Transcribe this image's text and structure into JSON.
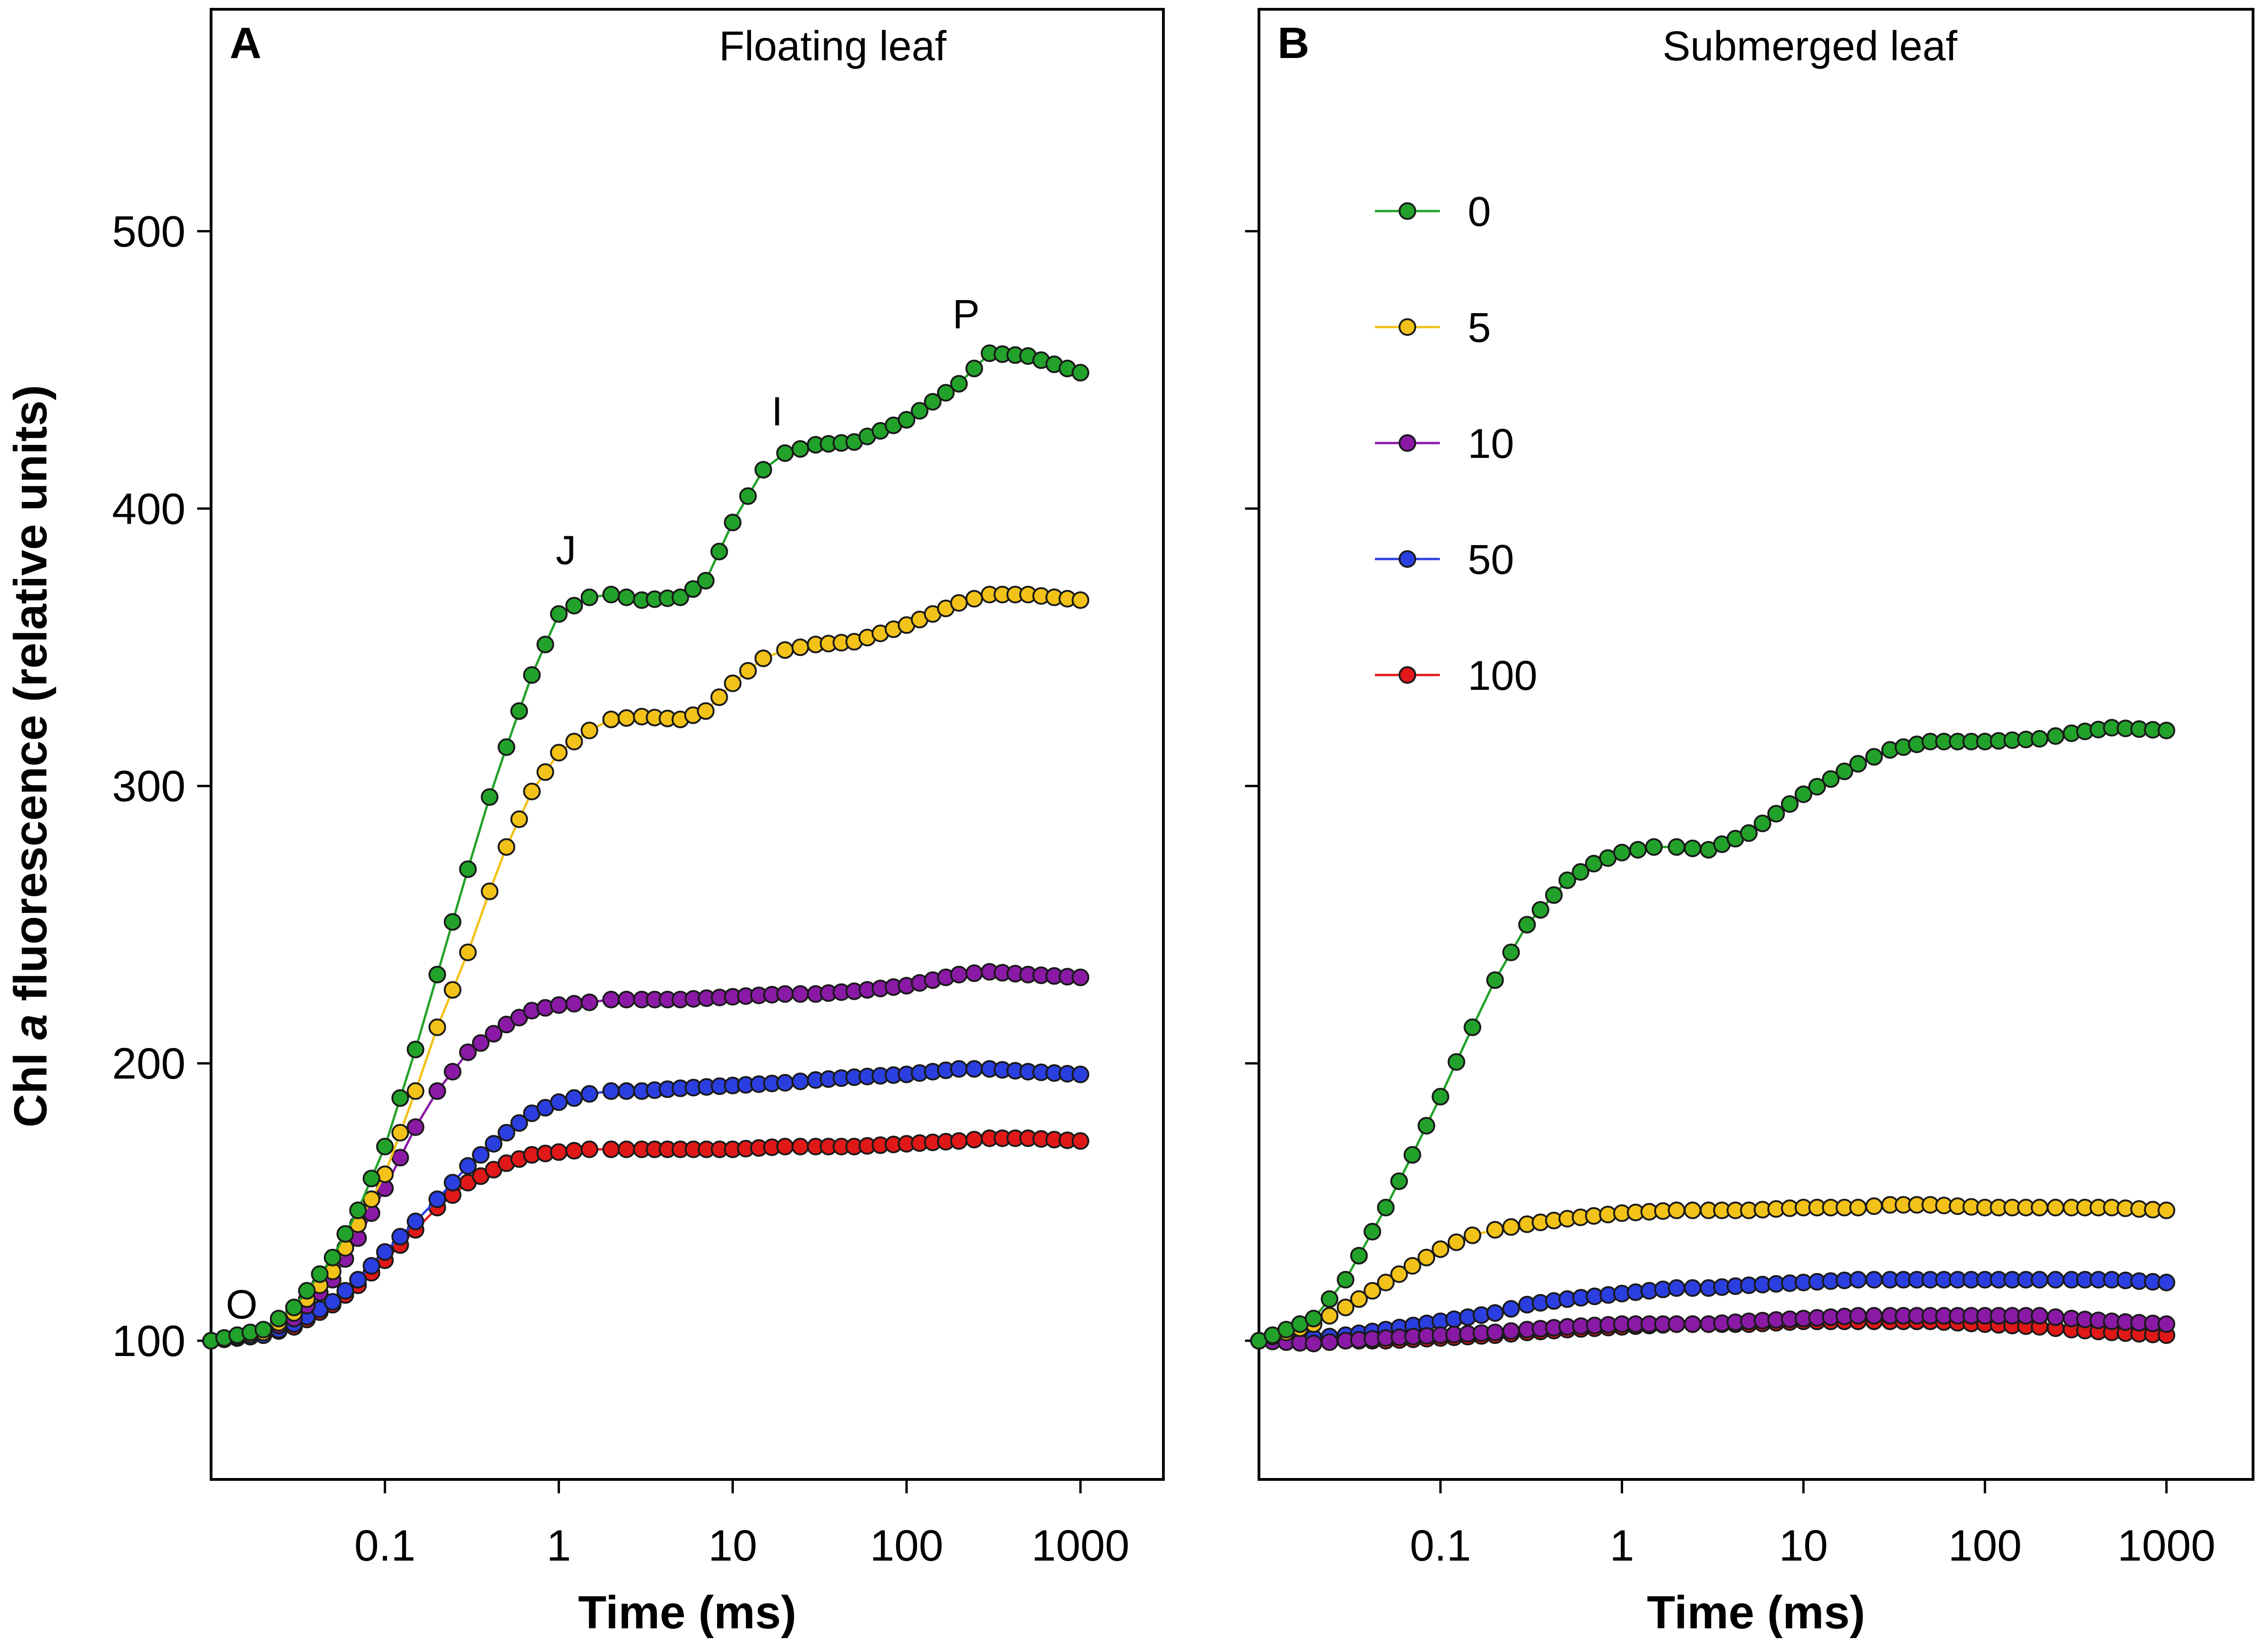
{
  "figure": {
    "ylabel": "Chl a fluorescence (relative units)",
    "xlabel": "Time (ms)"
  },
  "chart_data": [
    {
      "type": "scatter",
      "panel": "A",
      "title": "Floating leaf",
      "xlabel": "Time (ms)",
      "ylabel": "Chl a fluorescence (relative units)",
      "xscale": "log",
      "xlim": [
        0.01,
        3000
      ],
      "ylim": [
        50,
        580
      ],
      "xticks": [
        0.1,
        1,
        10,
        100,
        1000
      ],
      "xtick_labels": [
        "0.1",
        "1",
        "10",
        "100",
        "1000"
      ],
      "yticks": [
        100,
        200,
        300,
        400,
        500
      ],
      "ytick_labels": [
        "100",
        "200",
        "300",
        "400",
        "500"
      ],
      "annotations": [
        {
          "text": "O",
          "x": 0.015,
          "y": 108
        },
        {
          "text": "J",
          "x": 1.1,
          "y": 380
        },
        {
          "text": "I",
          "x": 18,
          "y": 430
        },
        {
          "text": "P",
          "x": 220,
          "y": 465
        }
      ],
      "series": [
        {
          "name": "0",
          "color": "#22a22a",
          "x": [
            0.01,
            0.02,
            0.03,
            0.05,
            0.07,
            0.1,
            0.15,
            0.2,
            0.3,
            0.4,
            0.5,
            0.7,
            1,
            1.5,
            2,
            3,
            5,
            7,
            10,
            15,
            20,
            30,
            50,
            100,
            200,
            300,
            500,
            1000
          ],
          "y": [
            100,
            104,
            112,
            130,
            147,
            170,
            205,
            232,
            270,
            296,
            314,
            340,
            362,
            368,
            369,
            367,
            368,
            374,
            395,
            414,
            420,
            423,
            424,
            432,
            445,
            456,
            455,
            449
          ]
        },
        {
          "name": "5",
          "color": "#f2c218",
          "x": [
            0.01,
            0.02,
            0.03,
            0.05,
            0.07,
            0.1,
            0.15,
            0.2,
            0.3,
            0.4,
            0.5,
            0.7,
            1,
            1.5,
            2,
            3,
            5,
            7,
            10,
            15,
            20,
            30,
            50,
            100,
            200,
            300,
            500,
            1000
          ],
          "y": [
            100,
            103,
            110,
            125,
            142,
            160,
            190,
            213,
            240,
            262,
            278,
            298,
            312,
            320,
            324,
            325,
            324,
            327,
            337,
            346,
            349,
            351,
            352,
            358,
            366,
            369,
            369,
            367
          ]
        },
        {
          "name": "10",
          "color": "#8a1aa6",
          "x": [
            0.01,
            0.02,
            0.03,
            0.05,
            0.07,
            0.1,
            0.15,
            0.2,
            0.3,
            0.5,
            0.7,
            1,
            1.5,
            2,
            3,
            5,
            10,
            20,
            30,
            50,
            100,
            200,
            300,
            500,
            1000
          ],
          "y": [
            100,
            103,
            108,
            122,
            137,
            155,
            177,
            190,
            204,
            214,
            219,
            221,
            222,
            223,
            223,
            223,
            224,
            225,
            225,
            226,
            228,
            232,
            233,
            232,
            231
          ]
        },
        {
          "name": "50",
          "color": "#2b3fe0",
          "x": [
            0.01,
            0.02,
            0.03,
            0.05,
            0.07,
            0.1,
            0.15,
            0.2,
            0.3,
            0.5,
            0.7,
            1,
            1.5,
            2,
            3,
            5,
            10,
            20,
            30,
            50,
            100,
            200,
            300,
            500,
            1000
          ],
          "y": [
            100,
            102,
            106,
            114,
            122,
            132,
            143,
            151,
            163,
            175,
            182,
            186,
            189,
            190,
            190,
            191,
            192,
            193,
            194,
            195,
            196,
            198,
            198,
            197,
            196
          ]
        },
        {
          "name": "100",
          "color": "#e01818",
          "x": [
            0.01,
            0.02,
            0.03,
            0.05,
            0.07,
            0.1,
            0.15,
            0.2,
            0.3,
            0.5,
            0.7,
            1,
            1.5,
            2,
            3,
            5,
            10,
            20,
            30,
            50,
            100,
            200,
            300,
            500,
            1000
          ],
          "y": [
            100,
            102,
            105,
            113,
            120,
            129,
            140,
            148,
            157,
            164,
            167,
            168,
            169,
            169,
            169,
            169,
            169,
            170,
            170,
            170,
            171,
            172,
            173,
            173,
            172
          ]
        }
      ]
    },
    {
      "type": "scatter",
      "panel": "B",
      "title": "Submerged leaf",
      "xlabel": "Time (ms)",
      "xscale": "log",
      "xlim": [
        0.01,
        3000
      ],
      "ylim": [
        50,
        580
      ],
      "xticks": [
        0.1,
        1,
        10,
        100,
        1000
      ],
      "xtick_labels": [
        "0.1",
        "1",
        "10",
        "100",
        "1000"
      ],
      "yticks": [
        100,
        200,
        300,
        400,
        500
      ],
      "legend": {
        "placement": "top-left",
        "labels": [
          "0",
          "5",
          "10",
          "50",
          "100"
        ]
      },
      "series": [
        {
          "name": "0",
          "color": "#22a22a",
          "x": [
            0.01,
            0.02,
            0.03,
            0.05,
            0.07,
            0.1,
            0.15,
            0.2,
            0.3,
            0.5,
            0.7,
            1,
            1.5,
            2,
            3,
            5,
            10,
            20,
            30,
            50,
            100,
            200,
            300,
            500,
            1000
          ],
          "y": [
            100,
            108,
            122,
            148,
            167,
            188,
            213,
            230,
            250,
            266,
            272,
            276,
            278,
            278,
            277,
            283,
            297,
            308,
            313,
            316,
            316,
            317,
            319,
            321,
            320
          ]
        },
        {
          "name": "5",
          "color": "#f2c218",
          "x": [
            0.01,
            0.02,
            0.03,
            0.05,
            0.07,
            0.1,
            0.15,
            0.2,
            0.3,
            0.5,
            0.7,
            1,
            2,
            3,
            5,
            10,
            20,
            30,
            50,
            100,
            200,
            300,
            500,
            1000
          ],
          "y": [
            100,
            106,
            112,
            121,
            127,
            133,
            138,
            140,
            142,
            144,
            145,
            146,
            147,
            147,
            147,
            148,
            148,
            149,
            149,
            148,
            148,
            148,
            148,
            147
          ]
        },
        {
          "name": "10",
          "color": "#8a1aa6",
          "x": [
            0.01,
            0.02,
            0.03,
            0.05,
            0.1,
            0.2,
            0.3,
            0.5,
            1,
            2,
            3,
            5,
            10,
            20,
            30,
            50,
            100,
            200,
            300,
            500,
            1000
          ],
          "y": [
            100,
            99,
            100,
            101,
            102,
            103,
            104,
            105,
            106,
            106,
            106,
            107,
            108,
            109,
            109,
            109,
            109,
            109,
            108,
            107,
            106
          ]
        },
        {
          "name": "50",
          "color": "#2b3fe0",
          "x": [
            0.01,
            0.02,
            0.03,
            0.05,
            0.1,
            0.2,
            0.3,
            0.5,
            1,
            2,
            3,
            5,
            10,
            20,
            30,
            50,
            100,
            200,
            300,
            500,
            1000
          ],
          "y": [
            100,
            101,
            102,
            104,
            107,
            110,
            113,
            115,
            117,
            119,
            119,
            120,
            121,
            122,
            122,
            122,
            122,
            122,
            122,
            122,
            121
          ]
        },
        {
          "name": "100",
          "color": "#e01818",
          "x": [
            0.01,
            0.02,
            0.03,
            0.05,
            0.1,
            0.2,
            0.3,
            0.5,
            1,
            2,
            3,
            5,
            10,
            20,
            30,
            50,
            100,
            200,
            300,
            500,
            1000
          ],
          "y": [
            100,
            99,
            100,
            100,
            101,
            102,
            103,
            104,
            105,
            106,
            106,
            106,
            107,
            107,
            107,
            107,
            106,
            105,
            104,
            103,
            102
          ]
        }
      ]
    }
  ]
}
